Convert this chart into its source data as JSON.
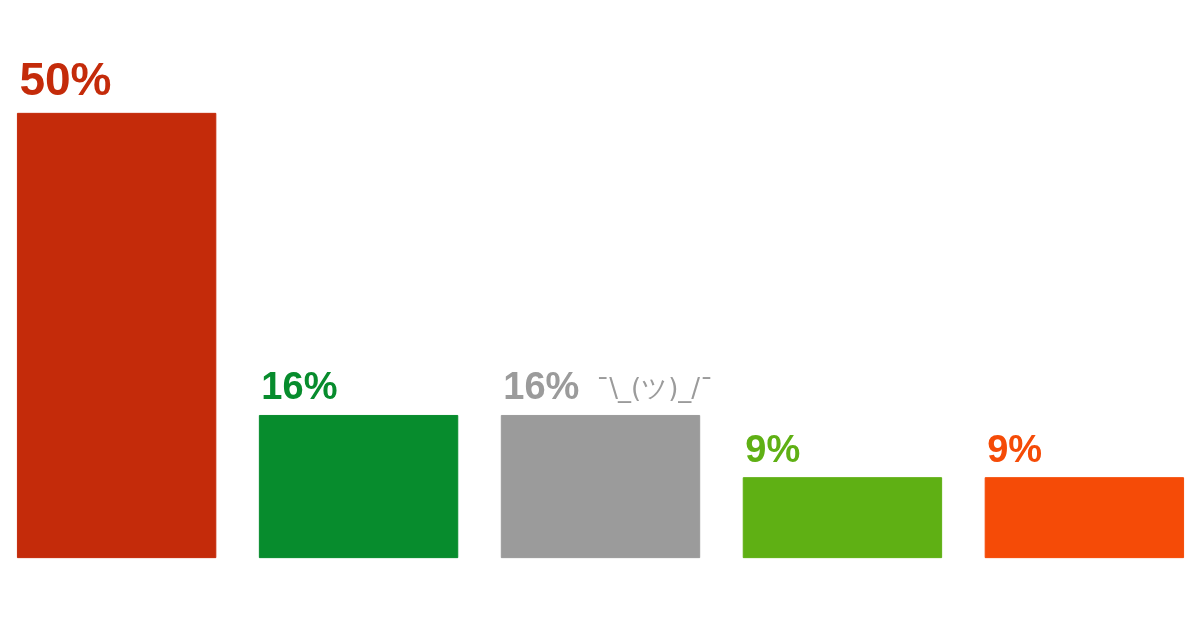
{
  "chart_data": {
    "type": "bar",
    "categories": [
      null,
      null,
      null,
      null,
      null
    ],
    "values": [
      50,
      16,
      16,
      9,
      9
    ],
    "colors": [
      "#c42b0a",
      "#078c2d",
      "#9b9b9b",
      "#5fb014",
      "#f54b07"
    ],
    "value_labels": [
      "50%",
      "16%",
      "16%",
      "9%",
      "9%"
    ],
    "annotations": [
      {
        "text": "¯\\_(ツ)_/¯",
        "y": 16
      }
    ],
    "grid": false
  }
}
